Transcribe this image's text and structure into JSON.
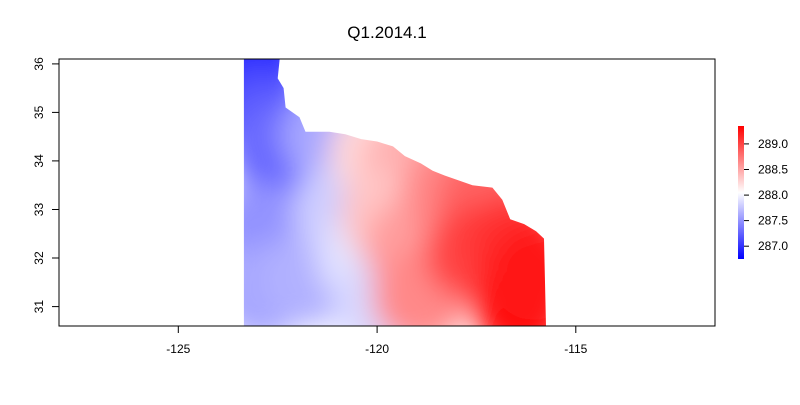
{
  "chart_data": {
    "type": "heatmap",
    "title": "Q1.2014.1",
    "xlabel": "",
    "ylabel": "",
    "xlim": [
      -128,
      -111.5
    ],
    "ylim": [
      30.6,
      36.1
    ],
    "x_ticks": [
      -125,
      -120,
      -115
    ],
    "x_tick_labels": [
      "-125",
      "-120",
      "-115"
    ],
    "y_ticks": [
      31,
      32,
      33,
      34,
      35,
      36
    ],
    "y_tick_labels": [
      "31",
      "32",
      "33",
      "34",
      "35",
      "36"
    ],
    "grid": false,
    "legend": {
      "type": "colorbar",
      "placement": "right",
      "range": [
        286.75,
        289.35
      ],
      "ticks": [
        287.0,
        287.5,
        288.0,
        288.5,
        289.0
      ],
      "tick_labels": [
        "287.0",
        "287.5",
        "288.0",
        "288.5",
        "289.0"
      ],
      "colors": [
        "#0000ff",
        "#ffffff",
        "#ff0000"
      ]
    },
    "colorscale": {
      "low": "#0000ff",
      "mid": "#ffffff",
      "high": "#ff0000",
      "midpoint": 288.05
    },
    "region_outline": [
      [
        -123.35,
        30.6
      ],
      [
        -123.35,
        36.1
      ],
      [
        -122.45,
        36.1
      ],
      [
        -122.5,
        35.7
      ],
      [
        -122.35,
        35.5
      ],
      [
        -122.3,
        35.1
      ],
      [
        -121.95,
        34.9
      ],
      [
        -121.8,
        34.6
      ],
      [
        -121.2,
        34.6
      ],
      [
        -120.8,
        34.55
      ],
      [
        -120.4,
        34.45
      ],
      [
        -120.0,
        34.4
      ],
      [
        -119.6,
        34.3
      ],
      [
        -119.3,
        34.1
      ],
      [
        -118.9,
        33.95
      ],
      [
        -118.6,
        33.8
      ],
      [
        -118.3,
        33.7
      ],
      [
        -117.6,
        33.5
      ],
      [
        -117.1,
        33.45
      ],
      [
        -116.85,
        33.2
      ],
      [
        -116.65,
        32.8
      ],
      [
        -116.3,
        32.7
      ],
      [
        -116.0,
        32.55
      ],
      [
        -115.8,
        32.4
      ],
      [
        -115.75,
        30.6
      ]
    ],
    "values": [
      {
        "lon": -123.1,
        "lat": 35.9,
        "value": 286.8
      },
      {
        "lon": -123.1,
        "lat": 35.3,
        "value": 287.05
      },
      {
        "lon": -122.8,
        "lat": 34.8,
        "value": 287.2
      },
      {
        "lon": -122.5,
        "lat": 34.2,
        "value": 287.3
      },
      {
        "lon": -121.9,
        "lat": 33.4,
        "value": 287.25
      },
      {
        "lon": -122.9,
        "lat": 32.6,
        "value": 287.5
      },
      {
        "lon": -122.9,
        "lat": 31.3,
        "value": 287.6
      },
      {
        "lon": -121.7,
        "lat": 31.6,
        "value": 287.65
      },
      {
        "lon": -121.2,
        "lat": 34.5,
        "value": 287.6
      },
      {
        "lon": -120.9,
        "lat": 33.0,
        "value": 287.8
      },
      {
        "lon": -120.3,
        "lat": 32.0,
        "value": 287.9
      },
      {
        "lon": -119.9,
        "lat": 31.0,
        "value": 287.85
      },
      {
        "lon": -120.0,
        "lat": 34.2,
        "value": 288.25
      },
      {
        "lon": -119.2,
        "lat": 33.9,
        "value": 288.45
      },
      {
        "lon": -119.7,
        "lat": 32.9,
        "value": 288.35
      },
      {
        "lon": -119.1,
        "lat": 32.2,
        "value": 288.55
      },
      {
        "lon": -118.9,
        "lat": 31.2,
        "value": 288.65
      },
      {
        "lon": -118.2,
        "lat": 33.4,
        "value": 288.65
      },
      {
        "lon": -117.3,
        "lat": 33.2,
        "value": 288.85
      },
      {
        "lon": -117.6,
        "lat": 32.1,
        "value": 289.0
      },
      {
        "lon": -116.6,
        "lat": 32.3,
        "value": 289.1
      },
      {
        "lon": -116.4,
        "lat": 31.0,
        "value": 289.3
      },
      {
        "lon": -116.0,
        "lat": 31.7,
        "value": 289.25
      }
    ]
  }
}
